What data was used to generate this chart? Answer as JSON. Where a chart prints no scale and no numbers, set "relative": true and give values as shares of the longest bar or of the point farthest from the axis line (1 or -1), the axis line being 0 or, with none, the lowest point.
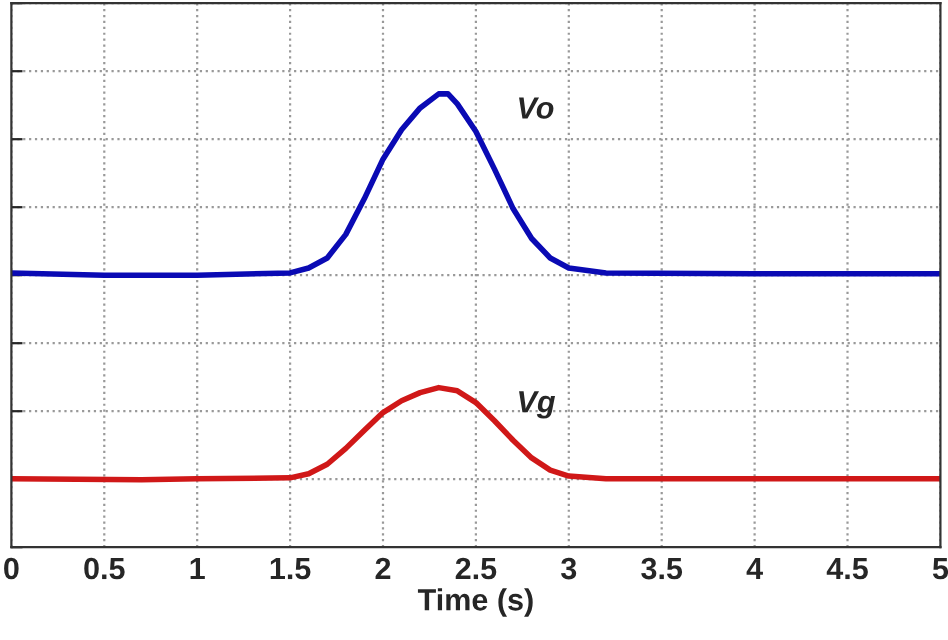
{
  "chart_data": {
    "type": "line",
    "relative": true,
    "xlabel": "Time (s)",
    "xlim": [
      0,
      5
    ],
    "xticks": [
      0,
      0.5,
      1,
      1.5,
      2,
      2.5,
      3,
      3.5,
      4,
      4.5,
      5
    ],
    "grid": true,
    "line_style": "solid",
    "marker": "none",
    "series": [
      {
        "name": "Vo",
        "color": "#0a0ab4",
        "x": [
          0,
          0.5,
          1,
          1.5,
          1.6,
          1.7,
          1.8,
          1.9,
          2.0,
          2.1,
          2.2,
          2.3,
          2.35,
          2.4,
          2.5,
          2.6,
          2.7,
          2.8,
          2.9,
          3.0,
          3.2,
          4,
          5
        ],
        "values": [
          0.605,
          0.6,
          0.6,
          0.605,
          0.616,
          0.638,
          0.69,
          0.769,
          0.856,
          0.921,
          0.969,
          1.0,
          1.0,
          0.978,
          0.917,
          0.834,
          0.747,
          0.681,
          0.638,
          0.616,
          0.605,
          0.603,
          0.603
        ]
      },
      {
        "name": "Vg",
        "color": "#d01818",
        "x": [
          0,
          0.7,
          1,
          1.5,
          1.6,
          1.7,
          1.8,
          1.9,
          2.0,
          2.1,
          2.2,
          2.3,
          2.4,
          2.5,
          2.6,
          2.7,
          2.8,
          2.9,
          3.0,
          3.2,
          4,
          5
        ],
        "values": [
          0.151,
          0.149,
          0.151,
          0.153,
          0.162,
          0.183,
          0.218,
          0.258,
          0.297,
          0.323,
          0.341,
          0.352,
          0.345,
          0.319,
          0.279,
          0.236,
          0.197,
          0.17,
          0.157,
          0.151,
          0.151,
          0.151
        ]
      }
    ]
  }
}
